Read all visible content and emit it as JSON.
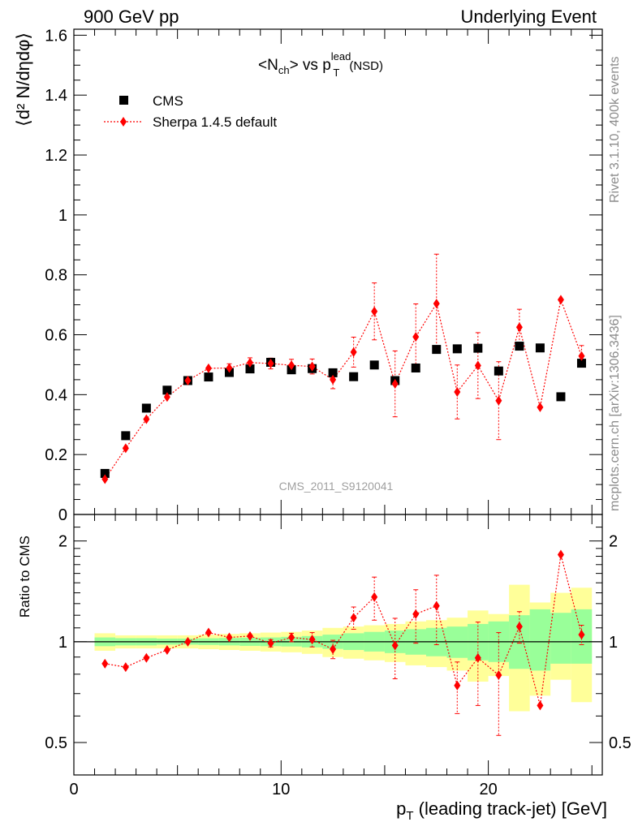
{
  "header": {
    "left": "900 GeV pp",
    "right": "Underlying Event"
  },
  "side_labels": {
    "rivet": "Rivet 3.1.10,  400k events",
    "mcplots": "mcplots.cern.ch [arXiv:1306.3436]"
  },
  "plot_title": {
    "main": "<N",
    "sub_ch": "ch",
    "vs": "> vs p",
    "sup": "lead",
    "subT": "T",
    "suffix": "(NSD)"
  },
  "ref_name": "CMS_2011_S9120041",
  "legend": {
    "data_label": "CMS",
    "mc_label": "Sherpa 1.4.5 default"
  },
  "colors": {
    "data": "#000000",
    "mc": "#ff0000",
    "band_inner": "#99ff99",
    "band_outer": "#ffff99",
    "side_text": "#8c8c8c"
  },
  "chart_data": [
    {
      "type": "scatter",
      "panel": "main",
      "ylabel": "⟨d² N/dηdφ⟩",
      "ylim": [
        0,
        1.62
      ],
      "xlim": [
        0,
        25.5
      ],
      "yticks": [
        0,
        0.2,
        0.4,
        0.6,
        0.8,
        1,
        1.2,
        1.4,
        1.6
      ],
      "ytick_labels": [
        "0",
        "0.2",
        "0.4",
        "0.6",
        "0.8",
        "1",
        "1.2",
        "1.4",
        "1.6"
      ],
      "x": [
        1.5,
        2.5,
        3.5,
        4.5,
        5.5,
        6.5,
        7.5,
        8.5,
        9.5,
        10.5,
        11.5,
        12.5,
        13.5,
        14.5,
        15.5,
        16.5,
        17.5,
        18.5,
        19.5,
        20.5,
        21.5,
        22.5,
        23.5,
        24.5
      ],
      "series": [
        {
          "name": "CMS",
          "values": [
            0.137,
            0.263,
            0.355,
            0.415,
            0.447,
            0.459,
            0.474,
            0.486,
            0.508,
            0.483,
            0.487,
            0.473,
            0.46,
            0.499,
            0.447,
            0.489,
            0.551,
            0.553,
            0.555,
            0.479,
            0.562,
            0.556,
            0.393,
            0.505
          ]
        },
        {
          "name": "Sherpa 1.4.5 default",
          "values": [
            0.118,
            0.221,
            0.318,
            0.392,
            0.447,
            0.488,
            0.489,
            0.507,
            0.504,
            0.498,
            0.494,
            0.45,
            0.542,
            0.678,
            0.436,
            0.593,
            0.704,
            0.409,
            0.497,
            0.38,
            0.625,
            0.358,
            0.717,
            0.529
          ],
          "errors": [
            0.006,
            0.008,
            0.01,
            0.01,
            0.012,
            0.012,
            0.014,
            0.016,
            0.018,
            0.02,
            0.025,
            0.03,
            0.05,
            0.095,
            0.11,
            0.11,
            0.165,
            0.09,
            0.11,
            0.13,
            0.06,
            0.01,
            0.01,
            0.035
          ]
        }
      ]
    },
    {
      "type": "scatter",
      "panel": "ratio",
      "ylabel": "Ratio to CMS",
      "yscale": "log",
      "ylim": [
        0.4,
        2.4
      ],
      "xlim": [
        0,
        25.5
      ],
      "xlabel_main": "p",
      "xlabel_sub": "T",
      "xlabel_rest": " (leading track-jet) [GeV]",
      "yticks": [
        0.5,
        1,
        2
      ],
      "ytick_labels": [
        "0.5",
        "1",
        "2"
      ],
      "xticks": [
        0,
        10,
        20
      ],
      "xtick_labels": [
        "0",
        "10",
        "20"
      ],
      "band_edges": [
        1,
        2,
        3,
        4,
        5,
        6,
        7,
        8,
        9,
        10,
        11,
        12,
        13,
        14,
        15,
        16,
        17,
        18,
        19,
        20,
        21,
        22,
        23,
        24,
        25
      ],
      "band_inner_lo": [
        0.97,
        0.975,
        0.975,
        0.98,
        0.98,
        0.978,
        0.975,
        0.972,
        0.97,
        0.968,
        0.962,
        0.952,
        0.945,
        0.935,
        0.925,
        0.915,
        0.905,
        0.895,
        0.88,
        0.87,
        0.83,
        0.82,
        0.86,
        0.86
      ],
      "band_inner_hi": [
        1.03,
        1.025,
        1.025,
        1.022,
        1.022,
        1.024,
        1.026,
        1.028,
        1.03,
        1.034,
        1.04,
        1.05,
        1.06,
        1.07,
        1.08,
        1.09,
        1.1,
        1.11,
        1.13,
        1.15,
        1.2,
        1.25,
        1.22,
        1.25
      ],
      "band_outer_lo": [
        0.94,
        0.955,
        0.955,
        0.955,
        0.955,
        0.95,
        0.945,
        0.94,
        0.935,
        0.93,
        0.92,
        0.9,
        0.89,
        0.88,
        0.87,
        0.85,
        0.84,
        0.82,
        0.76,
        0.79,
        0.62,
        0.69,
        0.77,
        0.66
      ],
      "band_outer_hi": [
        1.06,
        1.045,
        1.045,
        1.045,
        1.045,
        1.05,
        1.055,
        1.06,
        1.065,
        1.07,
        1.08,
        1.1,
        1.11,
        1.12,
        1.13,
        1.15,
        1.16,
        1.18,
        1.24,
        1.21,
        1.48,
        1.31,
        1.4,
        1.45
      ],
      "x": [
        1.5,
        2.5,
        3.5,
        4.5,
        5.5,
        6.5,
        7.5,
        8.5,
        9.5,
        10.5,
        11.5,
        12.5,
        13.5,
        14.5,
        15.5,
        16.5,
        17.5,
        18.5,
        19.5,
        20.5,
        21.5,
        22.5,
        23.5,
        24.5
      ],
      "series": [
        {
          "name": "Sherpa 1.4.5 default",
          "values": [
            0.86,
            0.84,
            0.895,
            0.945,
            1.0,
            1.065,
            1.03,
            1.04,
            0.99,
            1.03,
            1.015,
            0.95,
            1.18,
            1.36,
            0.975,
            1.21,
            1.28,
            0.74,
            0.895,
            0.795,
            1.11,
            0.645,
            1.82,
            1.05
          ],
          "errors": [
            0.01,
            0.01,
            0.012,
            0.012,
            0.013,
            0.015,
            0.018,
            0.02,
            0.025,
            0.03,
            0.05,
            0.06,
            0.09,
            0.2,
            0.2,
            0.22,
            0.3,
            0.13,
            0.25,
            0.27,
            0.12,
            0.01,
            0.01,
            0.07
          ]
        }
      ]
    }
  ]
}
